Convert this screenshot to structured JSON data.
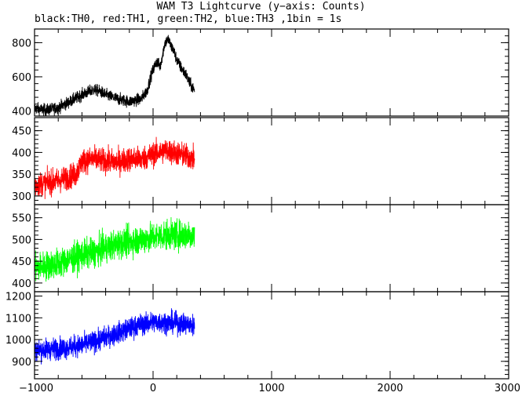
{
  "title": "WAM T3 Lightcurve (y−axis: Counts)",
  "subtitle": "black:TH0, red:TH1, green:TH2, blue:TH3 ,1bin = 1s",
  "chart_data": {
    "type": "line",
    "x_range": [
      -1000,
      3000
    ],
    "x_ticks": [
      -1000,
      0,
      1000,
      2000,
      3000
    ],
    "x_tick_labels": [
      "−1000",
      "0",
      "1000",
      "2000",
      "3000"
    ],
    "panels": [
      {
        "color": "#000000",
        "y_range": [
          370,
          880
        ],
        "y_ticks": [
          400,
          600,
          800
        ],
        "y_tick_labels": [
          "400",
          "600",
          "800"
        ],
        "profile": [
          [
            -1000,
            415
          ],
          [
            -900,
            405
          ],
          [
            -800,
            420
          ],
          [
            -700,
            455
          ],
          [
            -600,
            495
          ],
          [
            -500,
            525
          ],
          [
            -450,
            515
          ],
          [
            -400,
            495
          ],
          [
            -300,
            470
          ],
          [
            -200,
            455
          ],
          [
            -100,
            470
          ],
          [
            -50,
            520
          ],
          [
            -20,
            600
          ],
          [
            0,
            640
          ],
          [
            30,
            690
          ],
          [
            60,
            660
          ],
          [
            80,
            730
          ],
          [
            100,
            800
          ],
          [
            130,
            820
          ],
          [
            150,
            780
          ],
          [
            170,
            760
          ],
          [
            200,
            700
          ],
          [
            230,
            660
          ],
          [
            250,
            640
          ],
          [
            280,
            610
          ],
          [
            310,
            560
          ],
          [
            350,
            520
          ]
        ],
        "noise": 25
      },
      {
        "color": "#ff0000",
        "y_range": [
          280,
          480
        ],
        "y_ticks": [
          300,
          350,
          400,
          450
        ],
        "y_tick_labels": [
          "300",
          "350",
          "400",
          "450"
        ],
        "profile": [
          [
            -1000,
            325
          ],
          [
            -900,
            330
          ],
          [
            -800,
            335
          ],
          [
            -700,
            345
          ],
          [
            -650,
            350
          ],
          [
            -600,
            380
          ],
          [
            -500,
            385
          ],
          [
            -400,
            380
          ],
          [
            -300,
            378
          ],
          [
            -200,
            385
          ],
          [
            -100,
            385
          ],
          [
            0,
            395
          ],
          [
            100,
            405
          ],
          [
            200,
            398
          ],
          [
            300,
            390
          ],
          [
            350,
            385
          ]
        ],
        "noise": 20
      },
      {
        "color": "#00ff00",
        "y_range": [
          380,
          580
        ],
        "y_ticks": [
          400,
          450,
          500,
          550
        ],
        "y_tick_labels": [
          "400",
          "450",
          "500",
          "550"
        ],
        "profile": [
          [
            -1000,
            435
          ],
          [
            -900,
            440
          ],
          [
            -800,
            445
          ],
          [
            -700,
            455
          ],
          [
            -600,
            465
          ],
          [
            -500,
            470
          ],
          [
            -400,
            480
          ],
          [
            -300,
            490
          ],
          [
            -200,
            495
          ],
          [
            -100,
            500
          ],
          [
            0,
            505
          ],
          [
            100,
            510
          ],
          [
            200,
            510
          ],
          [
            300,
            512
          ],
          [
            350,
            508
          ]
        ],
        "noise": 24
      },
      {
        "color": "#0000ff",
        "y_range": [
          820,
          1220
        ],
        "y_ticks": [
          900,
          1000,
          1100,
          1200
        ],
        "y_tick_labels": [
          "900",
          "1000",
          "1100",
          "1200"
        ],
        "profile": [
          [
            -1000,
            950
          ],
          [
            -900,
            955
          ],
          [
            -800,
            960
          ],
          [
            -700,
            965
          ],
          [
            -600,
            975
          ],
          [
            -500,
            990
          ],
          [
            -400,
            1010
          ],
          [
            -300,
            1030
          ],
          [
            -200,
            1050
          ],
          [
            -100,
            1070
          ],
          [
            0,
            1080
          ],
          [
            100,
            1080
          ],
          [
            200,
            1075
          ],
          [
            300,
            1070
          ],
          [
            350,
            1065
          ]
        ],
        "noise": 35
      }
    ],
    "data_x_end": 350,
    "grid": false,
    "legend": "none"
  }
}
